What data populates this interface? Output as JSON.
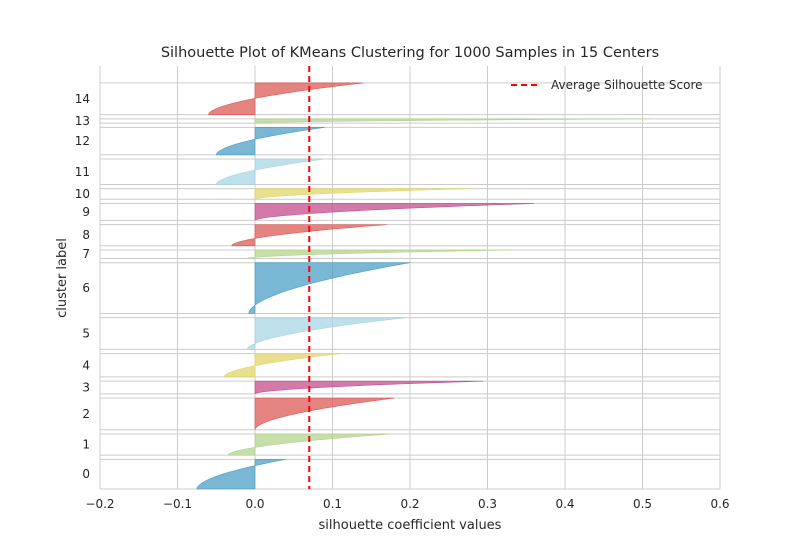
{
  "chart_data": {
    "type": "area",
    "title": "Silhouette Plot of KMeans Clustering for 1000 Samples in 15 Centers",
    "xlabel": "silhouette coefficient values",
    "ylabel": "cluster label",
    "xlim": [
      -0.2,
      0.6
    ],
    "ylim": [
      0,
      1000
    ],
    "x_ticks": [
      "−0.2",
      "−0.1",
      "0.0",
      "0.1",
      "0.2",
      "0.3",
      "0.4",
      "0.5",
      "0.6"
    ],
    "grid": true,
    "legend_position": "top-right",
    "average_silhouette_score": 0.07,
    "average_line": {
      "label": "Average Silhouette Score",
      "color": "#ff0000",
      "style": "dashed"
    },
    "clusters": [
      {
        "label": "0",
        "y_start": 0,
        "y_end": 70,
        "min": -0.075,
        "max": 0.04,
        "color": "#4c9fc5"
      },
      {
        "label": "1",
        "y_start": 80,
        "y_end": 130,
        "min": -0.035,
        "max": 0.175,
        "color": "#b3d38d"
      },
      {
        "label": "2",
        "y_start": 140,
        "y_end": 215,
        "min": 0.0,
        "max": 0.18,
        "color": "#dc5a57"
      },
      {
        "label": "3",
        "y_start": 225,
        "y_end": 255,
        "min": 0.0,
        "max": 0.295,
        "color": "#c44e8e"
      },
      {
        "label": "4",
        "y_start": 265,
        "y_end": 320,
        "min": -0.04,
        "max": 0.11,
        "color": "#e1d56a"
      },
      {
        "label": "5",
        "y_start": 330,
        "y_end": 405,
        "min": -0.01,
        "max": 0.195,
        "color": "#a8d6e3"
      },
      {
        "label": "6",
        "y_start": 415,
        "y_end": 535,
        "min": -0.008,
        "max": 0.2,
        "color": "#4c9fc5"
      },
      {
        "label": "7",
        "y_start": 545,
        "y_end": 565,
        "min": -0.01,
        "max": 0.33,
        "color": "#b3d38d"
      },
      {
        "label": "8",
        "y_start": 575,
        "y_end": 625,
        "min": -0.03,
        "max": 0.17,
        "color": "#dc5a57"
      },
      {
        "label": "9",
        "y_start": 635,
        "y_end": 675,
        "min": 0.0,
        "max": 0.36,
        "color": "#c44e8e"
      },
      {
        "label": "10",
        "y_start": 685,
        "y_end": 710,
        "min": 0.0,
        "max": 0.28,
        "color": "#e1d56a"
      },
      {
        "label": "11",
        "y_start": 720,
        "y_end": 780,
        "min": -0.05,
        "max": 0.09,
        "color": "#a8d6e3"
      },
      {
        "label": "12",
        "y_start": 790,
        "y_end": 855,
        "min": -0.05,
        "max": 0.09,
        "color": "#4c9fc5"
      },
      {
        "label": "13",
        "y_start": 865,
        "y_end": 875,
        "min": 0.0,
        "max": 0.51,
        "color": "#b3d38d"
      },
      {
        "label": "14",
        "y_start": 885,
        "y_end": 960,
        "min": -0.06,
        "max": 0.14,
        "color": "#dc5a57"
      }
    ]
  }
}
